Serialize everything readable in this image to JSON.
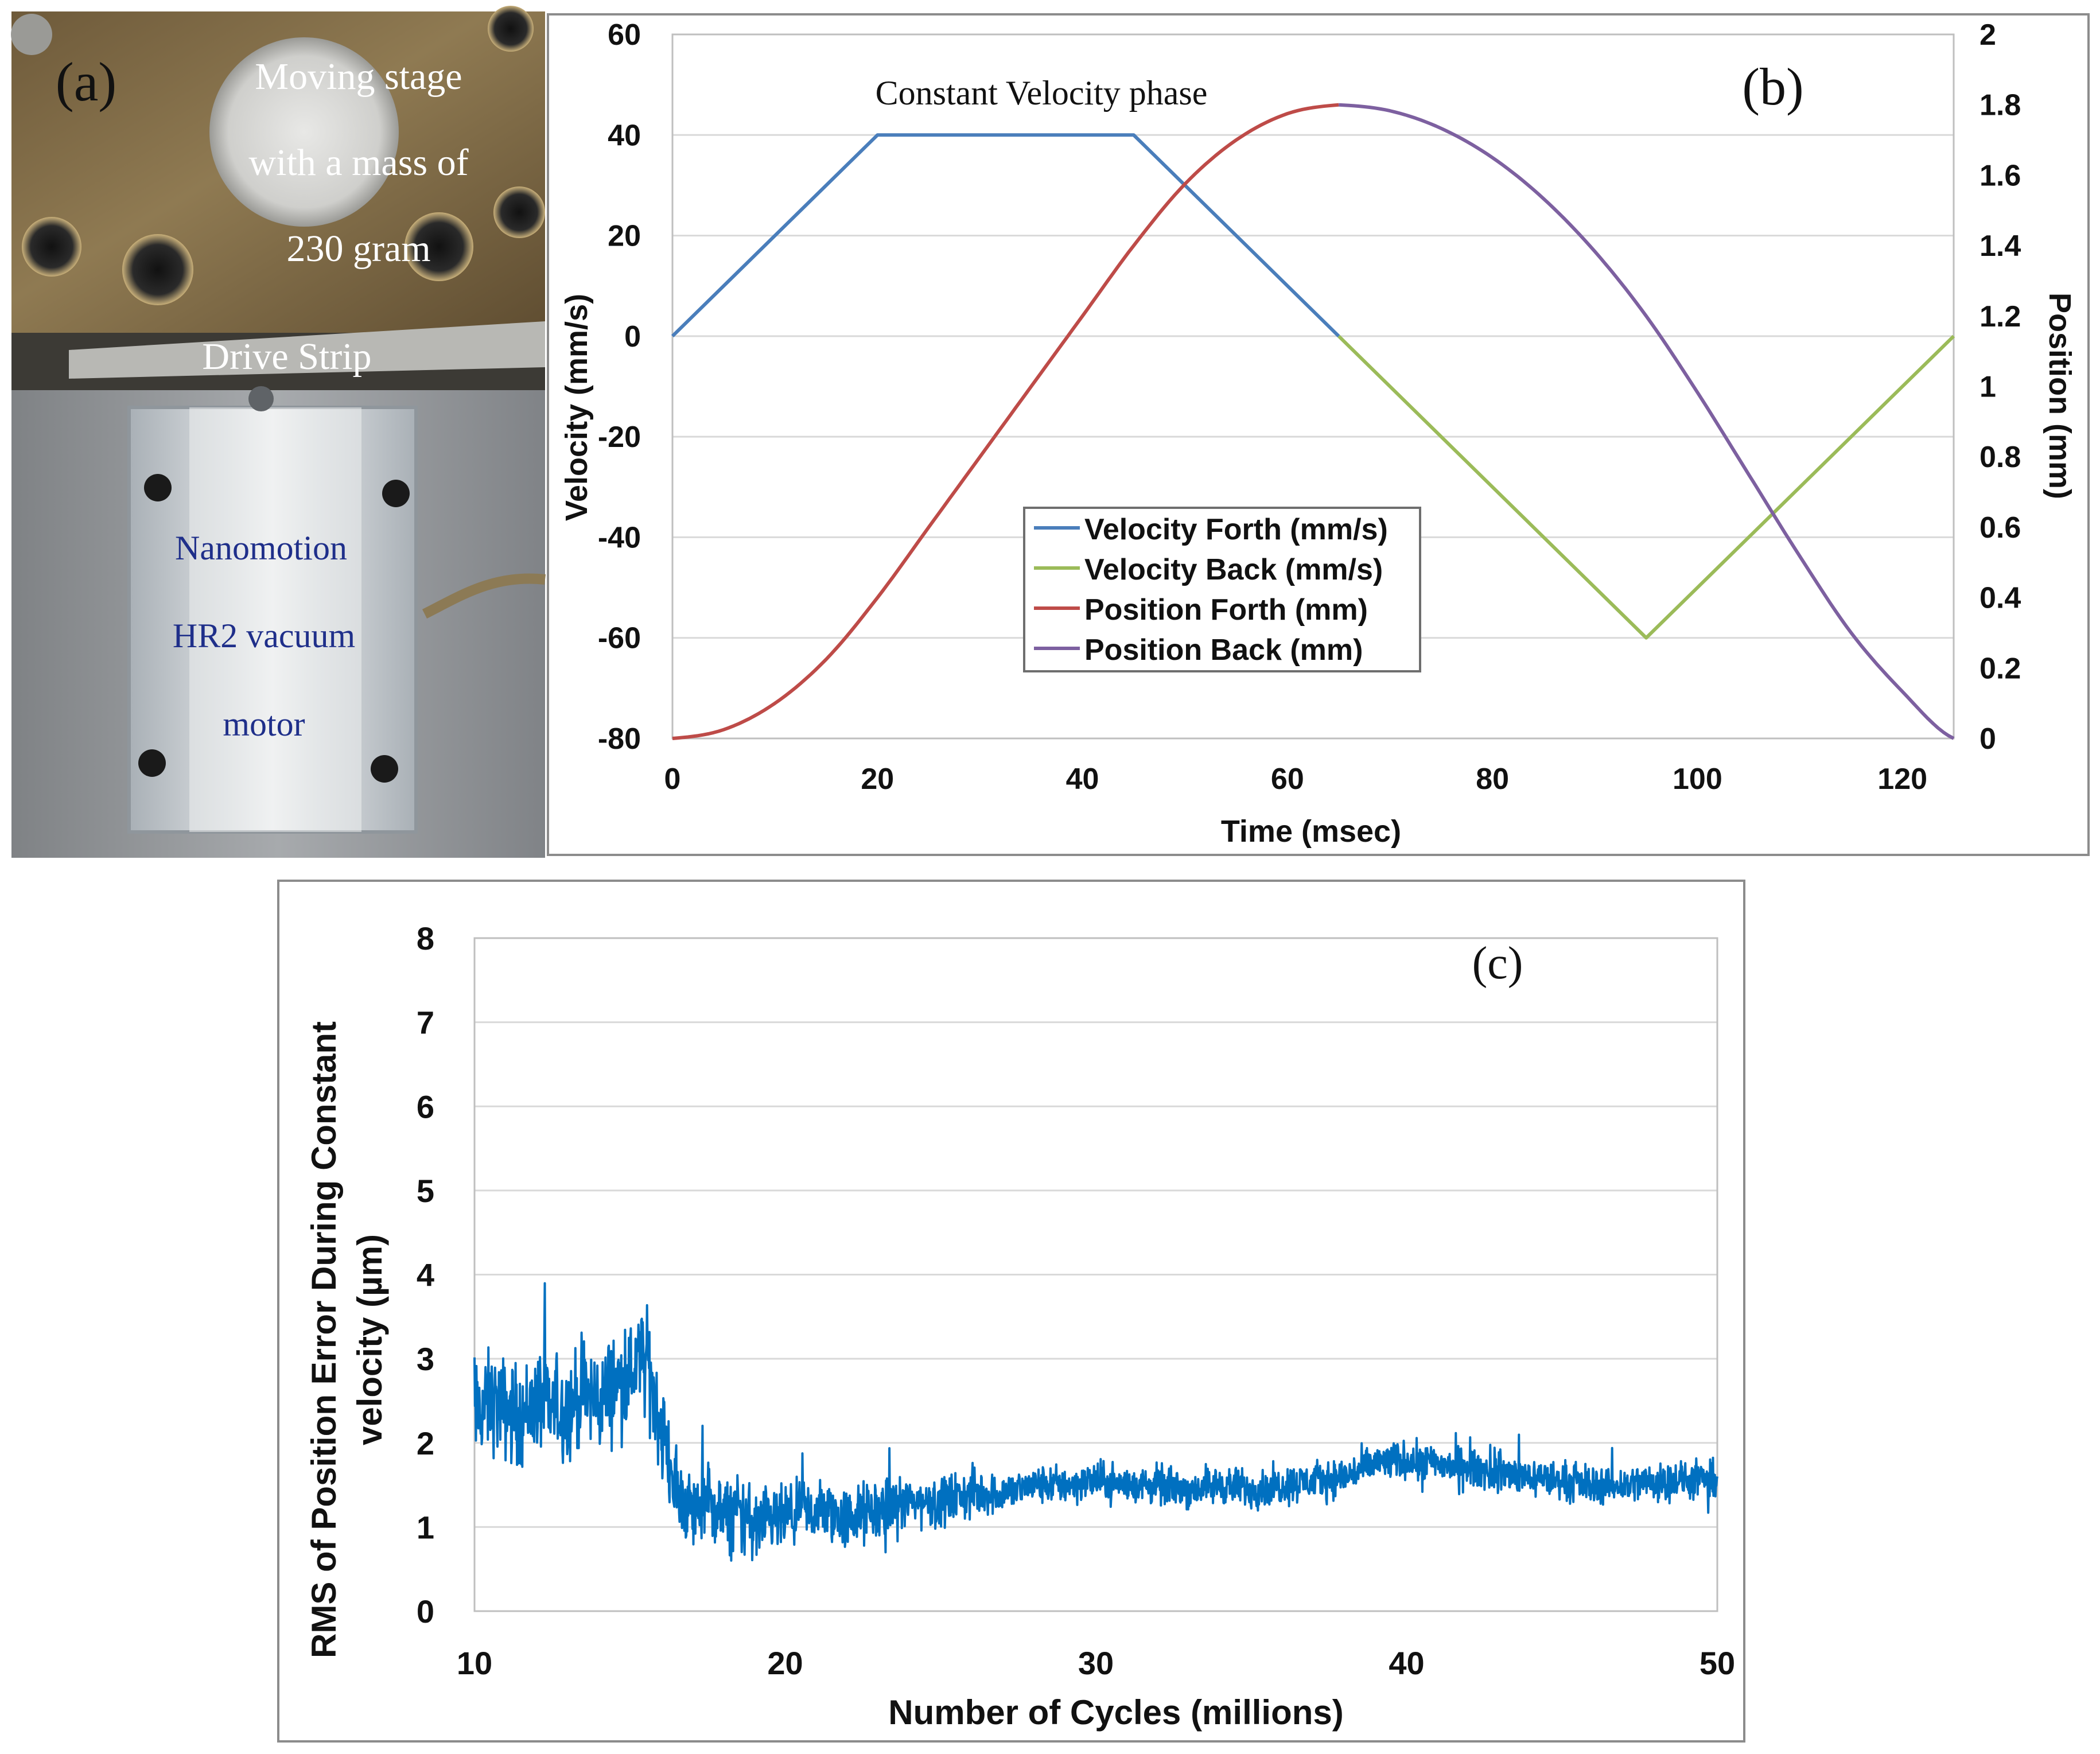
{
  "panel_a": {
    "label": "(a)",
    "stage_lines": [
      "Moving stage",
      "with a mass of",
      "230 gram"
    ],
    "strip_label": "Drive Strip",
    "motor_lines": [
      "Nanomotion",
      "HR2 vacuum",
      "motor"
    ]
  },
  "colors": {
    "velocity_forth": "#4a7ebb",
    "velocity_back": "#9bbb59",
    "position_forth": "#be4b48",
    "position_back": "#7d60a0",
    "rms": "#0070c0",
    "grid": "#d9d9d9",
    "frame": "#888888"
  },
  "chart_data": [
    {
      "id": "b",
      "type": "line",
      "panel_label": "(b)",
      "annotation": "Constant Velocity phase",
      "xlabel": "Time (msec)",
      "ylabel": "Velocity (mm/s)",
      "y2label": "Position (mm)",
      "xlim": [
        0,
        125
      ],
      "ylim": [
        -80,
        60
      ],
      "y2lim": [
        0,
        2
      ],
      "x_ticks": [
        "0",
        "20",
        "40",
        "60",
        "80",
        "100",
        "120"
      ],
      "y_ticks": [
        "60",
        "40",
        "20",
        "0",
        "-20",
        "-40",
        "-60",
        "-80"
      ],
      "y2_ticks": [
        "2",
        "1.8",
        "1.6",
        "1.4",
        "1.2",
        "1",
        "0.8",
        "0.6",
        "0.4",
        "0.2",
        "0"
      ],
      "legend_position": "center",
      "series": [
        {
          "name": "Velocity Forth (mm/s)",
          "axis": "left",
          "x": [
            0,
            20,
            45,
            65
          ],
          "y": [
            0,
            40,
            40,
            0
          ]
        },
        {
          "name": "Velocity Back (mm/s)",
          "axis": "left",
          "x": [
            65,
            95,
            125
          ],
          "y": [
            0,
            -60,
            0
          ]
        },
        {
          "name": "Position Forth (mm)",
          "axis": "right",
          "x": [
            0,
            5,
            10,
            15,
            20,
            25,
            30,
            35,
            40,
            45,
            50,
            55,
            60,
            65
          ],
          "y": [
            0,
            0.025,
            0.1,
            0.225,
            0.4,
            0.6,
            0.8,
            1.0,
            1.2,
            1.4,
            1.575,
            1.7,
            1.775,
            1.8
          ]
        },
        {
          "name": "Position Back (mm)",
          "axis": "right",
          "x": [
            65,
            70,
            75,
            80,
            85,
            90,
            95,
            100,
            105,
            110,
            115,
            120,
            125
          ],
          "y": [
            1.8,
            1.783,
            1.733,
            1.65,
            1.533,
            1.383,
            1.2,
            0.983,
            0.75,
            0.517,
            0.3,
            0.133,
            0
          ]
        }
      ]
    },
    {
      "id": "c",
      "type": "line",
      "panel_label": "(c)",
      "xlabel": "Number of Cycles (millions)",
      "ylabel_lines": [
        "RMS of Position Error  During Constant",
        "velocity (µm)"
      ],
      "xlim": [
        10,
        50
      ],
      "ylim": [
        0,
        8
      ],
      "x_ticks": [
        "10",
        "20",
        "30",
        "40",
        "50"
      ],
      "y_ticks": [
        "8",
        "7",
        "6",
        "5",
        "4",
        "3",
        "2",
        "1",
        "0"
      ],
      "series": [
        {
          "name": "RMS position error",
          "x": [
            10,
            10.5,
            11,
            11.5,
            12,
            12.5,
            13,
            13.5,
            14,
            14.5,
            15,
            15.3,
            15.6,
            16,
            16.5,
            17,
            17.5,
            18,
            18.5,
            19,
            20,
            21,
            22,
            23,
            24,
            25,
            26,
            27,
            28,
            29,
            30,
            31,
            32,
            33,
            34,
            35,
            36,
            37,
            38,
            39,
            40,
            41,
            42,
            43,
            44,
            45,
            46,
            47,
            48,
            49,
            50
          ],
          "y": [
            2.3,
            2.5,
            2.4,
            2.3,
            2.5,
            2.4,
            2.4,
            2.6,
            2.5,
            2.7,
            2.8,
            3.0,
            2.9,
            2.2,
            1.4,
            1.2,
            1.3,
            1.1,
            1.2,
            1.0,
            1.1,
            1.2,
            1.1,
            1.2,
            1.3,
            1.3,
            1.4,
            1.4,
            1.5,
            1.5,
            1.55,
            1.5,
            1.5,
            1.45,
            1.5,
            1.45,
            1.5,
            1.55,
            1.6,
            1.75,
            1.8,
            1.75,
            1.7,
            1.65,
            1.6,
            1.55,
            1.5,
            1.5,
            1.55,
            1.55,
            1.55
          ],
          "noise_band": [
            0.8,
            0.8,
            0.8,
            0.8,
            0.8,
            0.8,
            0.8,
            0.8,
            0.8,
            0.8,
            0.8,
            0.8,
            0.8,
            0.8,
            0.6,
            0.6,
            0.6,
            0.6,
            0.6,
            0.6,
            0.5,
            0.5,
            0.5,
            0.5,
            0.4,
            0.4,
            0.4,
            0.3,
            0.3,
            0.3,
            0.3,
            0.3,
            0.3,
            0.3,
            0.3,
            0.3,
            0.3,
            0.3,
            0.3,
            0.3,
            0.3,
            0.3,
            0.3,
            0.3,
            0.3,
            0.3,
            0.3,
            0.3,
            0.3,
            0.3,
            0.3
          ]
        }
      ]
    }
  ]
}
